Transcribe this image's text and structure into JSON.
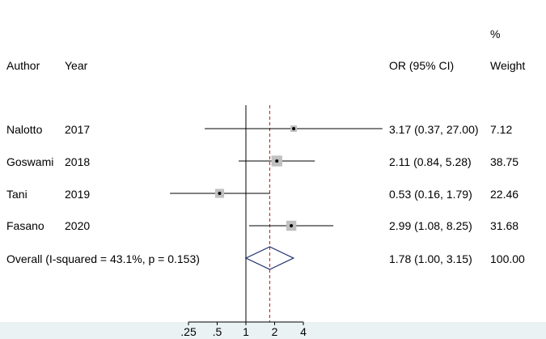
{
  "header": {
    "author": "Author",
    "year": "Year",
    "or_ci": "OR (95% CI)",
    "weight_line1": "%",
    "weight_line2": "Weight"
  },
  "studies": [
    {
      "author": "Nalotto",
      "year": "2017",
      "ci_text": "3.17 (0.37, 27.00)",
      "weight": "7.12"
    },
    {
      "author": "Goswami",
      "year": "2018",
      "ci_text": "2.11 (0.84, 5.28)",
      "weight": "38.75"
    },
    {
      "author": "Tani",
      "year": "2019",
      "ci_text": "0.53 (0.16, 1.79)",
      "weight": "22.46"
    },
    {
      "author": "Fasano",
      "year": "2020",
      "ci_text": "2.99 (1.08, 8.25)",
      "weight": "31.68"
    }
  ],
  "overall": {
    "label": "Overall  (I-squared = 43.1%, p = 0.153)",
    "ci_text": "1.78 (1.00, 3.15)",
    "weight": "100.00"
  },
  "colors": {
    "box": "#c0c0c0",
    "diamond": "#1a2a6c",
    "reference_line": "#000000",
    "overall_line": "#b22222",
    "bottom_band": "#eaf2f3"
  },
  "chart_data": {
    "type": "forest",
    "scale": "log",
    "null_value": 1,
    "xticks": [
      0.25,
      0.5,
      1,
      2,
      4
    ],
    "xtick_labels": [
      ".25",
      ".5",
      "1",
      "2",
      "4"
    ],
    "studies": [
      {
        "or": 3.17,
        "lower": 0.37,
        "upper": 27.0,
        "weight": 7.12
      },
      {
        "or": 2.11,
        "lower": 0.84,
        "upper": 5.28,
        "weight": 38.75
      },
      {
        "or": 0.53,
        "lower": 0.16,
        "upper": 1.79,
        "weight": 22.46
      },
      {
        "or": 2.99,
        "lower": 1.08,
        "upper": 8.25,
        "weight": 31.68
      }
    ],
    "overall": {
      "or": 1.78,
      "lower": 1.0,
      "upper": 3.15,
      "weight": 100.0
    }
  }
}
